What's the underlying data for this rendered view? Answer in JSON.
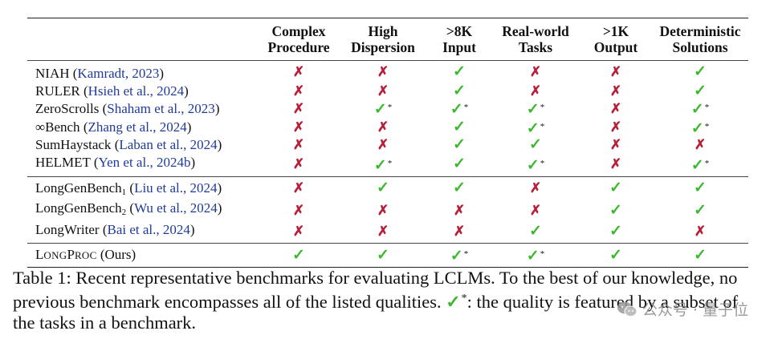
{
  "header": {
    "columns": [
      {
        "line1": "Complex",
        "line2": "Procedure"
      },
      {
        "line1": "High",
        "line2": "Dispersion"
      },
      {
        "line1": ">8K",
        "line2": "Input"
      },
      {
        "line1": "Real-world",
        "line2": "Tasks"
      },
      {
        "line1": ">1K",
        "line2": "Output"
      },
      {
        "line1": "Deterministic",
        "line2": "Solutions"
      }
    ]
  },
  "symbols": {
    "check": "✓",
    "cross": "✗",
    "star": "*"
  },
  "group1": [
    {
      "name": "NIAH",
      "cite": "Kamradt, 2023",
      "marks": [
        "cross",
        "cross",
        "check",
        "cross",
        "cross",
        "check"
      ],
      "stars": [
        false,
        false,
        false,
        false,
        false,
        false
      ]
    },
    {
      "name": "RULER",
      "cite": "Hsieh et al., 2024",
      "marks": [
        "cross",
        "cross",
        "check",
        "cross",
        "cross",
        "check"
      ],
      "stars": [
        false,
        false,
        false,
        false,
        false,
        false
      ]
    },
    {
      "name": "ZeroScrolls",
      "cite": "Shaham et al., 2023",
      "marks": [
        "cross",
        "check",
        "check",
        "check",
        "cross",
        "check"
      ],
      "stars": [
        false,
        true,
        true,
        true,
        false,
        true
      ]
    },
    {
      "name": "∞Bench",
      "cite": "Zhang et al., 2024",
      "marks": [
        "cross",
        "cross",
        "check",
        "check",
        "cross",
        "check"
      ],
      "stars": [
        false,
        false,
        false,
        true,
        false,
        true
      ]
    },
    {
      "name": "SumHaystack",
      "cite": "Laban et al., 2024",
      "marks": [
        "cross",
        "cross",
        "check",
        "check",
        "cross",
        "cross"
      ],
      "stars": [
        false,
        false,
        false,
        false,
        false,
        false
      ]
    },
    {
      "name": "HELMET",
      "cite": "Yen et al., 2024b",
      "marks": [
        "cross",
        "check",
        "check",
        "check",
        "cross",
        "check"
      ],
      "stars": [
        false,
        true,
        false,
        true,
        false,
        true
      ]
    }
  ],
  "group2": [
    {
      "name": "LongGenBench",
      "sub": "1",
      "cite": "Liu et al., 2024",
      "marks": [
        "cross",
        "check",
        "check",
        "cross",
        "check",
        "check"
      ],
      "stars": [
        false,
        false,
        false,
        false,
        false,
        false
      ]
    },
    {
      "name": "LongGenBench",
      "sub": "2",
      "cite": "Wu et al., 2024",
      "marks": [
        "cross",
        "cross",
        "cross",
        "cross",
        "check",
        "check"
      ],
      "stars": [
        false,
        false,
        false,
        false,
        false,
        false
      ]
    },
    {
      "name": "LongWriter",
      "cite": "Bai et al., 2024",
      "marks": [
        "cross",
        "cross",
        "cross",
        "check",
        "check",
        "cross"
      ],
      "stars": [
        false,
        false,
        false,
        false,
        false,
        false
      ]
    }
  ],
  "ours": {
    "name_big1": "L",
    "name_small1": "ONG",
    "name_big2": "P",
    "name_small2": "ROC",
    "suffix": "(Ours)",
    "marks": [
      "check",
      "check",
      "check",
      "check",
      "check",
      "check"
    ],
    "stars": [
      false,
      false,
      true,
      true,
      false,
      false
    ]
  },
  "caption": {
    "part1": "Table 1: Recent representative benchmarks for evaluating LCLMs. To the best of our knowledge, no previous benchmark encompasses all of the listed qualities.",
    "part2": ": the quality is featured by a subset of the tasks in a benchmark."
  },
  "watermark": {
    "text": "公众号 · 量子位"
  }
}
